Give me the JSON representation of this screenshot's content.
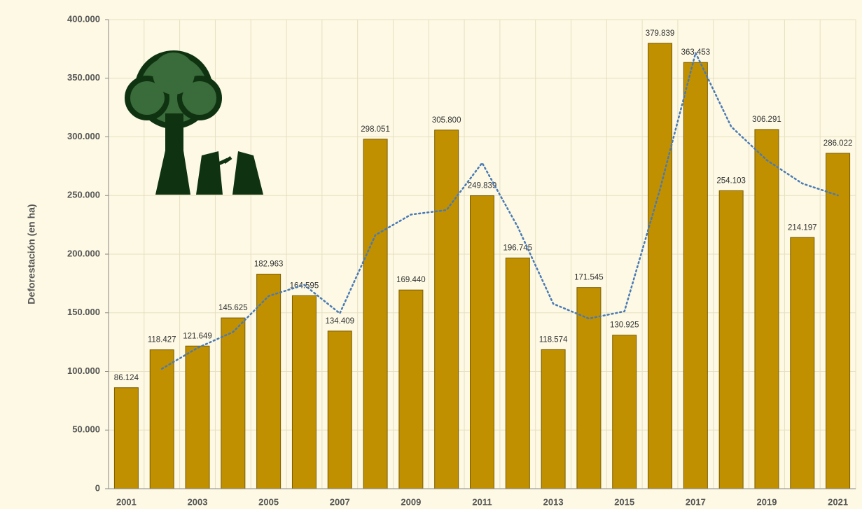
{
  "chart_data": {
    "type": "bar",
    "y_label": "Deforestación (en ha)",
    "categories": [
      "2001",
      null,
      "2003",
      null,
      "2005",
      null,
      "2007",
      null,
      "2009",
      null,
      "2011",
      null,
      "2013",
      null,
      "2015",
      null,
      "2017",
      null,
      "2019",
      null,
      "2021"
    ],
    "values": [
      86124,
      118427,
      121649,
      145625,
      182963,
      164595,
      134409,
      298051,
      169440,
      305800,
      249839,
      196745,
      118574,
      171545,
      130925,
      379839,
      363453,
      254103,
      306291,
      214197,
      286022
    ],
    "value_labels": [
      "86.124",
      "118.427",
      "121.649",
      "145.625",
      "182.963",
      "164.595",
      "134.409",
      "298.051",
      "169.440",
      "305.800",
      "249.839",
      "196.745",
      "118.574",
      "171.545",
      "130.925",
      "379.839",
      "363.453",
      "254.103",
      "306.291",
      "214.197",
      "286.022"
    ],
    "color": "#c09000",
    "trend": [
      null,
      102276,
      120038,
      133637,
      164294,
      173779,
      149502,
      216230,
      233746,
      237620,
      277820,
      223292,
      157660,
      145060,
      151235,
      255382,
      371646,
      308778,
      280197,
      260244,
      250110
    ],
    "trend_color": "#4a7ab5",
    "ylim": [
      0,
      400000
    ],
    "yticks": [
      0,
      {
        "value": 50000,
        "label": "50.000"
      },
      {
        "value": 100000,
        "label": "100.000"
      },
      {
        "value": 150000,
        "label": "150.000"
      },
      {
        "value": 200000,
        "label": "200.000"
      },
      {
        "value": 250000,
        "label": "250.000"
      },
      {
        "value": 300000,
        "label": "300.000"
      },
      {
        "value": 350000,
        "label": "350.000"
      },
      {
        "value": 400000,
        "label": "400.000"
      }
    ],
    "grid": true
  }
}
